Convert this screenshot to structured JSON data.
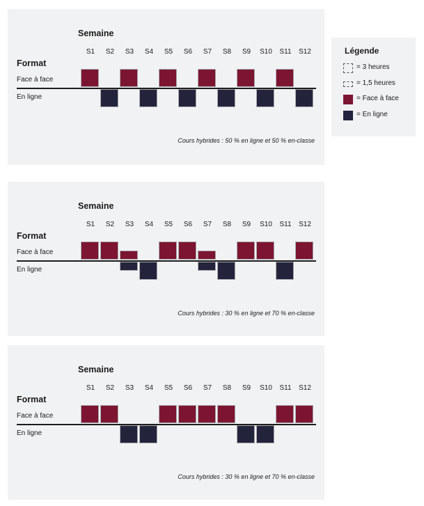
{
  "legend": {
    "title": "Légende",
    "items": [
      {
        "key": "three_hours",
        "label": "= 3 heures",
        "style": "dashed-outline-full"
      },
      {
        "key": "one_half_hours",
        "label": "= 1,5 heures",
        "style": "dashed-outline-half"
      },
      {
        "key": "face_a_face",
        "label": "= Face à face",
        "color": "#7c1531"
      },
      {
        "key": "en_ligne",
        "label": "= En ligne",
        "color": "#23243c"
      }
    ]
  },
  "colors": {
    "face_a_face": "#7c1531",
    "en_ligne": "#23243c",
    "panel_bg": "#f1f2f4"
  },
  "panels": [
    {
      "semaine_label": "Semaine",
      "format_label": "Format",
      "row_face_label": "Face à face",
      "row_online_label": "En ligne",
      "weeks": [
        "S1",
        "S2",
        "S3",
        "S4",
        "S5",
        "S6",
        "S7",
        "S8",
        "S9",
        "S10",
        "S11",
        "S12"
      ],
      "face_hours": [
        3,
        0,
        3,
        0,
        3,
        0,
        3,
        0,
        3,
        0,
        3,
        0
      ],
      "online_hours": [
        0,
        3,
        0,
        3,
        0,
        3,
        0,
        3,
        0,
        3,
        0,
        3
      ],
      "caption": "Cours hybrides : 50 % en ligne et 50 % en-classe"
    },
    {
      "semaine_label": "Semaine",
      "format_label": "Format",
      "row_face_label": "Face à face",
      "row_online_label": "En ligne",
      "weeks": [
        "S1",
        "S2",
        "S3",
        "S4",
        "S5",
        "S6",
        "S7",
        "S8",
        "S9",
        "S10",
        "S11",
        "S12"
      ],
      "face_hours": [
        3,
        3,
        1.5,
        0,
        3,
        3,
        1.5,
        0,
        3,
        3,
        0,
        3
      ],
      "online_hours": [
        0,
        0,
        1.5,
        3,
        0,
        0,
        1.5,
        3,
        0,
        0,
        3,
        0
      ],
      "caption": "Cours hybrides : 30 % en ligne et 70 % en-classe"
    },
    {
      "semaine_label": "Semaine",
      "format_label": "Format",
      "row_face_label": "Face à face",
      "row_online_label": "En ligne",
      "weeks": [
        "S1",
        "S2",
        "S3",
        "S4",
        "S5",
        "S6",
        "S7",
        "S8",
        "S9",
        "S10",
        "S11",
        "S12"
      ],
      "face_hours": [
        3,
        3,
        0,
        0,
        3,
        3,
        3,
        3,
        0,
        0,
        3,
        3
      ],
      "online_hours": [
        0,
        0,
        3,
        3,
        0,
        0,
        0,
        0,
        3,
        3,
        0,
        0
      ],
      "caption": "Cours hybrides : 30 % en ligne et 70 % en-classe"
    }
  ]
}
